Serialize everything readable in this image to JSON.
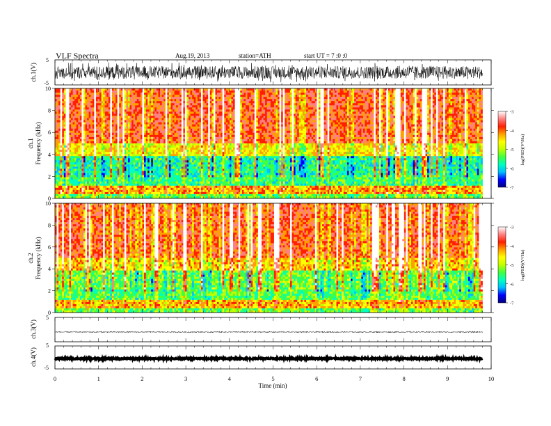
{
  "header": {
    "title": "VLF  Spectra",
    "date": "Aug.19, 2013",
    "station": "station=ATH",
    "start": "start  UT  =   7  :0  :0"
  },
  "chart_data": [
    {
      "type": "line",
      "panel": "ch1-waveform",
      "ylabel": "ch.1(V)",
      "ylim": [
        -5,
        5
      ],
      "yticks": [
        "5",
        "-5"
      ],
      "xlim": [
        0,
        10
      ],
      "waveform": {
        "x_end": 9.8,
        "baseline": 0,
        "amplitude": 2.5,
        "trace_color": "#000000"
      }
    },
    {
      "type": "heatmap",
      "panel": "ch1-spectrogram",
      "ylabel": [
        "ch.1",
        "Frequency  (kHz)"
      ],
      "ylim": [
        0,
        10
      ],
      "yticks": [
        "0",
        "2",
        "4",
        "6",
        "8",
        "10"
      ],
      "xlim": [
        0,
        10
      ],
      "x_end": 9.8,
      "frequency_bands_kHz": [
        {
          "from": 0,
          "to": 0.4,
          "level": -5.3
        },
        {
          "from": 0.4,
          "to": 1.2,
          "level": -4.3
        },
        {
          "from": 1.2,
          "to": 2.2,
          "level": -5.5
        },
        {
          "from": 2.2,
          "to": 3.8,
          "level": -5.6
        },
        {
          "from": 3.8,
          "to": 5.0,
          "level": -4.6
        },
        {
          "from": 5.0,
          "to": 10.0,
          "level": -3.9
        }
      ],
      "colorbar": {
        "label": "log(PSD)(V²/Hz)",
        "ticks": [
          "-3",
          "-4",
          "-5",
          "-6",
          "-7"
        ],
        "range": [
          -7,
          -3
        ],
        "colors": [
          "#000080",
          "#0000ff",
          "#00bfff",
          "#00ffc0",
          "#40ff40",
          "#c0ff00",
          "#ffff00",
          "#ffa000",
          "#ff2000",
          "#ff8080",
          "#ffffff"
        ]
      }
    },
    {
      "type": "heatmap",
      "panel": "ch2-spectrogram",
      "ylabel": [
        "ch.2",
        "Frequency  (kHz)"
      ],
      "ylim": [
        0,
        10
      ],
      "yticks": [
        "0",
        "2",
        "4",
        "6",
        "8",
        "10"
      ],
      "xlim": [
        0,
        10
      ],
      "x_end": 9.8,
      "frequency_bands_kHz": [
        {
          "from": 0,
          "to": 0.4,
          "level": -5.3
        },
        {
          "from": 0.4,
          "to": 1.2,
          "level": -4.4
        },
        {
          "from": 1.2,
          "to": 2.2,
          "level": -5.4
        },
        {
          "from": 2.2,
          "to": 3.8,
          "level": -5.2
        },
        {
          "from": 3.8,
          "to": 5.0,
          "level": -4.4
        },
        {
          "from": 5.0,
          "to": 10.0,
          "level": -3.9
        }
      ],
      "colorbar": {
        "label": "log(PSD)(V²/Hz)",
        "ticks": [
          "-3",
          "-4",
          "-5",
          "-6",
          "-7"
        ],
        "range": [
          -7,
          -3
        ],
        "colors": [
          "#000080",
          "#0000ff",
          "#00bfff",
          "#00ffc0",
          "#40ff40",
          "#c0ff00",
          "#ffff00",
          "#ffa000",
          "#ff2000",
          "#ff8080",
          "#ffffff"
        ]
      }
    },
    {
      "type": "line",
      "panel": "ch3-waveform",
      "ylabel": "ch.3(V)",
      "ylim": [
        -5,
        5
      ],
      "yticks": [
        "5"
      ],
      "xlim": [
        0,
        10
      ],
      "waveform": {
        "x_end": 9.8,
        "baseline": -1,
        "amplitude": 0.25,
        "trace_color": "#000000"
      }
    },
    {
      "type": "line",
      "panel": "ch4-waveform",
      "ylabel": "ch.4(V)",
      "ylim": [
        -5,
        5
      ],
      "yticks": [
        "5",
        "-5"
      ],
      "xlim": [
        0,
        10
      ],
      "waveform": {
        "x_end": 9.8,
        "baseline": -0.5,
        "amplitude": 0.3,
        "trace_color": "#000000"
      }
    }
  ],
  "xaxis": {
    "label": "Time  (min)",
    "ticks": [
      "0",
      "1",
      "2",
      "3",
      "4",
      "5",
      "6",
      "7",
      "8",
      "9",
      "10"
    ]
  }
}
